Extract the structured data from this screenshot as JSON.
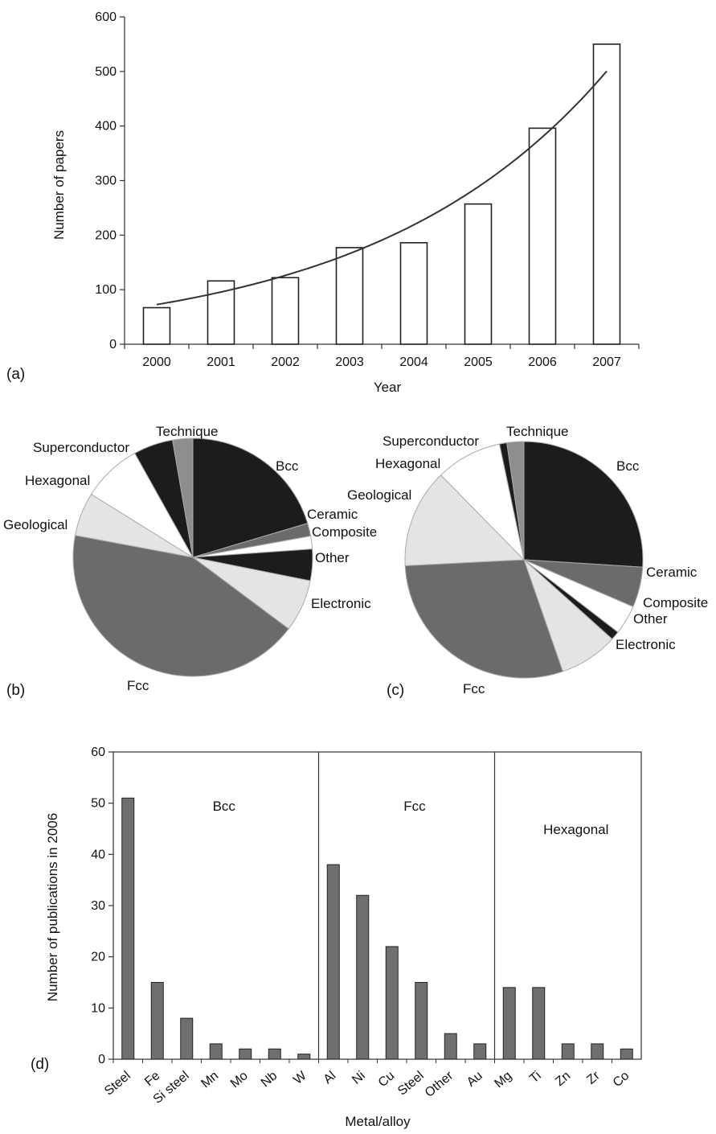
{
  "chart_data": [
    {
      "panel": "(a)",
      "type": "bar",
      "categories": [
        "2000",
        "2001",
        "2002",
        "2003",
        "2004",
        "2005",
        "2006",
        "2007"
      ],
      "values": [
        67,
        116,
        122,
        177,
        186,
        257,
        396,
        550
      ],
      "trend_line": "exponential",
      "xlabel": "Year",
      "ylabel": "Number of papers",
      "ylim": [
        0,
        600
      ],
      "yticks": [
        0,
        100,
        200,
        300,
        400,
        500,
        600
      ],
      "bar_color": "#ffffff",
      "edge_color": "#222222"
    },
    {
      "panel": "(b)",
      "type": "pie",
      "slices": [
        {
          "label": "Bcc",
          "value": 21,
          "color": "#1c1c1c"
        },
        {
          "label": "Ceramic",
          "value": 1.8,
          "color": "#6b6b6b"
        },
        {
          "label": "Composite",
          "value": 1.8,
          "color": "#ffffff"
        },
        {
          "label": "Other",
          "value": 4.4,
          "color": "#1c1c1c"
        },
        {
          "label": "Electronic",
          "value": 7.3,
          "color": "#e4e4e4"
        },
        {
          "label": "Fcc",
          "value": 44,
          "color": "#6b6b6b"
        },
        {
          "label": "Geological",
          "value": 6.1,
          "color": "#e4e4e4"
        },
        {
          "label": "Hexagonal",
          "value": 8.3,
          "color": "#ffffff"
        },
        {
          "label": "Superconductor",
          "value": 5.5,
          "color": "#1c1c1c"
        },
        {
          "label": "Technique",
          "value": 2.8,
          "color": "#8e8e8e"
        }
      ]
    },
    {
      "panel": "(c)",
      "type": "pie",
      "slices": [
        {
          "label": "Bcc",
          "value": 26,
          "color": "#1c1c1c"
        },
        {
          "label": "Ceramic",
          "value": 5.5,
          "color": "#6b6b6b"
        },
        {
          "label": "Composite",
          "value": 4.0,
          "color": "#ffffff"
        },
        {
          "label": "Other",
          "value": 1.2,
          "color": "#1c1c1c"
        },
        {
          "label": "Electronic",
          "value": 8.0,
          "color": "#e4e4e4"
        },
        {
          "label": "Fcc",
          "value": 29.5,
          "color": "#6b6b6b"
        },
        {
          "label": "Geological",
          "value": 13.5,
          "color": "#e4e4e4"
        },
        {
          "label": "Hexagonal",
          "value": 9.0,
          "color": "#ffffff"
        },
        {
          "label": "Superconductor",
          "value": 1.0,
          "color": "#1c1c1c"
        },
        {
          "label": "Technique",
          "value": 2.3,
          "color": "#8e8e8e"
        }
      ]
    },
    {
      "panel": "(d)",
      "type": "bar",
      "categories": [
        "Steel",
        "Fe",
        "Si steel",
        "Mn",
        "Mo",
        "Nb",
        "W",
        "Al",
        "Ni",
        "Cu",
        "Steel",
        "Other",
        "Au",
        "Mg",
        "Ti",
        "Zn",
        "Zr",
        "Co"
      ],
      "values": [
        51,
        15,
        8,
        3,
        2,
        2,
        1,
        38,
        32,
        22,
        15,
        5,
        3,
        14,
        14,
        3,
        3,
        2
      ],
      "groups": [
        {
          "label": "Bcc",
          "count": 7
        },
        {
          "label": "Fcc",
          "count": 6
        },
        {
          "label": "Hexagonal",
          "count": 5
        }
      ],
      "xlabel": "Metal/alloy",
      "ylabel": "Number of publications in 2006",
      "ylim": [
        0,
        60
      ],
      "yticks": [
        0,
        10,
        20,
        30,
        40,
        50,
        60
      ],
      "bar_color": "#6f6f6f",
      "edge_color": "#222222"
    }
  ]
}
